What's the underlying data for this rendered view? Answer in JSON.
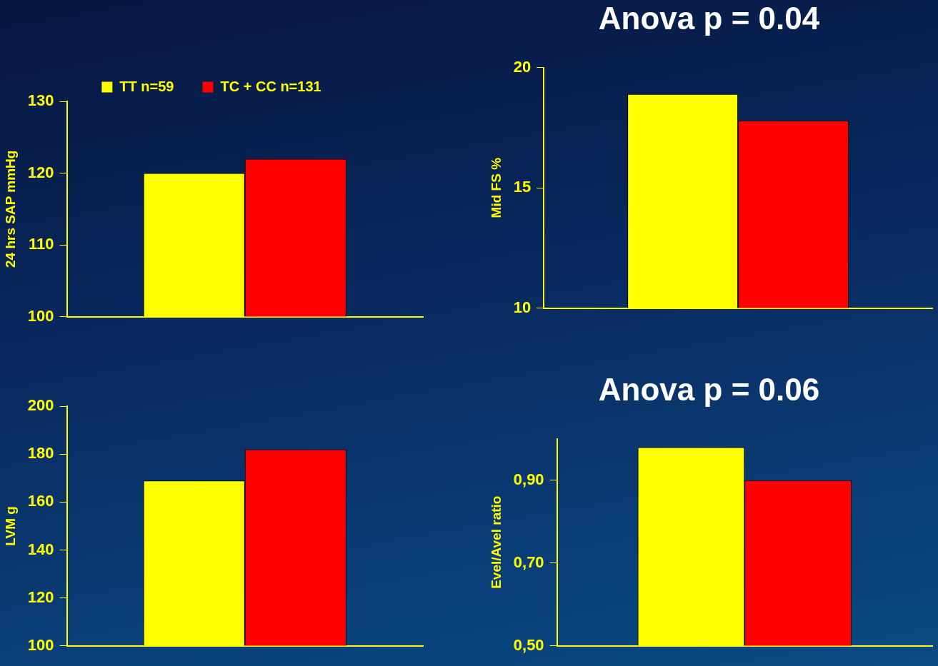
{
  "chart_data": [
    {
      "type": "bar",
      "ylabel": "24 hrs SAP mmHg",
      "categories": [
        null
      ],
      "ylim": [
        100,
        130
      ],
      "yticks": [
        100,
        110,
        120,
        130
      ],
      "grid": false,
      "legend": "top",
      "series": [
        {
          "name": "TT n=59",
          "color": "#ffff00",
          "values": [
            120
          ]
        },
        {
          "name": "TC + CC n=131",
          "color": "#ff0000",
          "values": [
            122
          ]
        }
      ]
    },
    {
      "type": "bar",
      "title": "Anova p = 0.04",
      "ylabel": "Mid FS %",
      "categories": [
        null
      ],
      "ylim": [
        10,
        20
      ],
      "yticks": [
        10,
        15,
        20
      ],
      "grid": false,
      "series": [
        {
          "color": "#ffff00",
          "values": [
            18.9
          ]
        },
        {
          "color": "#ff0000",
          "values": [
            17.8
          ]
        }
      ]
    },
    {
      "type": "bar",
      "ylabel": "LVM g",
      "categories": [
        null
      ],
      "ylim": [
        100,
        200
      ],
      "yticks": [
        100,
        120,
        140,
        160,
        180,
        200
      ],
      "grid": false,
      "series": [
        {
          "color": "#ffff00",
          "values": [
            169
          ]
        },
        {
          "color": "#ff0000",
          "values": [
            182
          ]
        }
      ]
    },
    {
      "type": "bar",
      "title": "Anova p = 0.06",
      "ylabel": "Evel/Avel ratio",
      "categories": [
        null
      ],
      "ylim": [
        0.5,
        1.0
      ],
      "yticks": [
        {
          "value": 0.5,
          "label": "0,50"
        },
        {
          "value": 0.7,
          "label": "0,70"
        },
        {
          "value": 0.9,
          "label": "0,90"
        }
      ],
      "grid": false,
      "series": [
        {
          "color": "#ffff00",
          "values": [
            0.98
          ]
        },
        {
          "color": "#ff0000",
          "values": [
            0.9
          ]
        }
      ]
    }
  ]
}
